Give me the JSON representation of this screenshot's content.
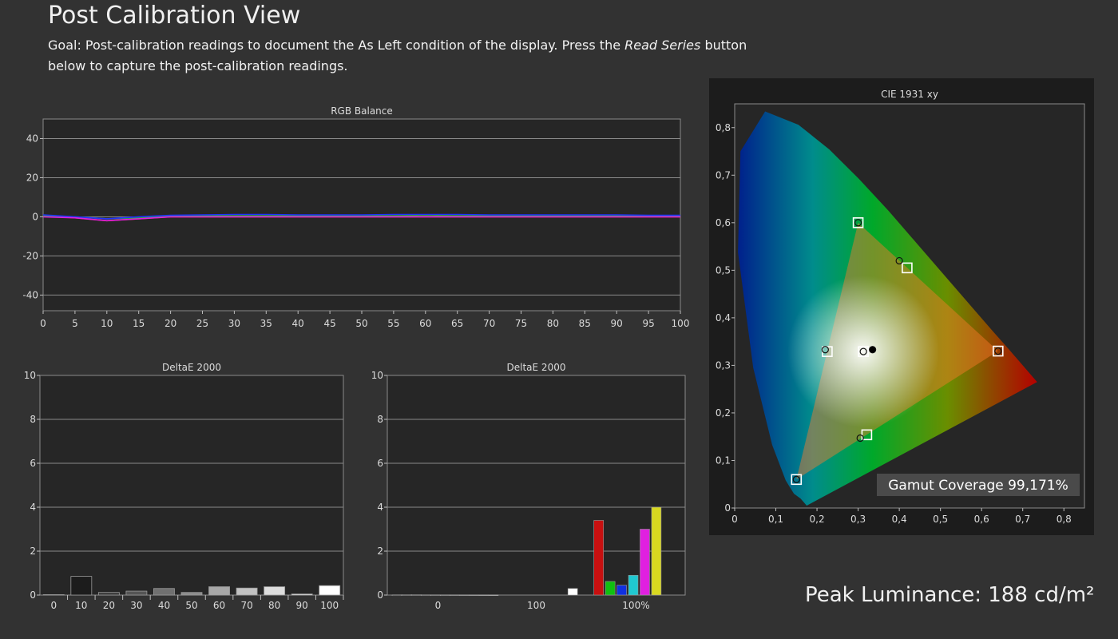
{
  "header": {
    "title": "Post Calibration View",
    "goal_prefix": "Goal: Post-calibration readings to document the As Left condition of the display. Press the ",
    "goal_emphasis": "Read Series",
    "goal_suffix": " button below to capture the post-calibration readings."
  },
  "peak_luminance": "Peak Luminance: 188 cd/m²",
  "chart_data": [
    {
      "type": "line",
      "title": "RGB Balance",
      "x": [
        0,
        5,
        10,
        15,
        20,
        25,
        30,
        35,
        40,
        45,
        50,
        55,
        60,
        65,
        70,
        75,
        80,
        85,
        90,
        95,
        100
      ],
      "xlim": [
        0,
        100
      ],
      "ylim": [
        -48,
        50
      ],
      "yticks": [
        40,
        20,
        0,
        -20,
        -40
      ],
      "ytick_labels": [
        "40",
        "20",
        "0",
        "-20",
        "-40"
      ],
      "xtick_labels": [
        "0",
        "5",
        "10",
        "15",
        "20",
        "25",
        "30",
        "35",
        "40",
        "45",
        "50",
        "55",
        "60",
        "65",
        "70",
        "75",
        "80",
        "85",
        "90",
        "95",
        "100"
      ],
      "grid": true,
      "series": [
        {
          "color": "#ff2020",
          "values": [
            0.5,
            -0.5,
            -2,
            -1,
            0,
            0,
            0,
            0,
            0,
            0,
            0,
            0,
            0,
            0,
            0,
            0,
            0,
            0,
            0,
            0,
            0
          ]
        },
        {
          "color": "#20c020",
          "values": [
            0.5,
            0,
            -1,
            -0.5,
            0.5,
            0.5,
            0.5,
            0.5,
            0.5,
            0.5,
            0.5,
            0.5,
            0.8,
            0.5,
            0.5,
            0.5,
            0.5,
            0.5,
            0.5,
            0.5,
            0.5
          ]
        },
        {
          "color": "#2030ff",
          "values": [
            1,
            0,
            -1,
            0,
            0.8,
            1,
            1.2,
            1.2,
            1,
            1,
            1,
            1.2,
            1.2,
            1.2,
            1,
            1,
            1,
            1,
            1,
            0.8,
            0.8
          ]
        },
        {
          "color": "#e020e0",
          "values": [
            0,
            -0.5,
            -2,
            -1,
            0,
            0,
            0,
            0,
            0,
            0,
            0,
            0,
            0,
            0,
            0,
            0,
            0,
            0,
            0,
            0,
            0
          ]
        }
      ]
    },
    {
      "type": "bar",
      "title": "DeltaE 2000",
      "categories": [
        "0",
        "10",
        "20",
        "30",
        "40",
        "50",
        "60",
        "70",
        "80",
        "90",
        "100"
      ],
      "values": [
        0.02,
        0.85,
        0.12,
        0.18,
        0.3,
        0.12,
        0.38,
        0.32,
        0.38,
        0.05,
        0.43
      ],
      "colors": [
        "#0e0e0e",
        "#1c1c1c",
        "#3a3a3a",
        "#555555",
        "#707070",
        "#8c8c8c",
        "#a7a7a7",
        "#c2c2c2",
        "#dddddd",
        "#eeeeee",
        "#ffffff"
      ],
      "ylim": [
        0,
        10
      ],
      "yticks": [
        "0",
        "2",
        "4",
        "6",
        "8",
        "10"
      ],
      "grid": true
    },
    {
      "type": "bar",
      "title": "DeltaE 2000",
      "group_labels": [
        "0",
        "100",
        "100%"
      ],
      "bars": [
        {
          "value": 0.01,
          "color": "#202020"
        },
        {
          "value": 0.02,
          "color": "#2b2b2b"
        },
        {
          "value": 0.02,
          "color": "#353535"
        },
        {
          "value": 0.01,
          "color": "#404040"
        },
        {
          "value": 0.01,
          "color": "#505050"
        },
        {
          "value": 0.01,
          "color": "#606060"
        },
        {
          "value": 0.01,
          "color": "#707070"
        },
        {
          "value": 0.01,
          "color": "#808080"
        },
        {
          "value": 0.01,
          "color": "#909090"
        },
        {
          "value": 0.01,
          "color": "#a0a0a0"
        },
        {
          "value": 0.01,
          "color": "#b0b0b0"
        },
        {
          "value": 0.3,
          "color": "#ffffff"
        },
        {
          "value": 3.4,
          "color": "#c81010"
        },
        {
          "value": 0.62,
          "color": "#10c010"
        },
        {
          "value": 0.45,
          "color": "#1030e0"
        },
        {
          "value": 0.9,
          "color": "#20c8d0"
        },
        {
          "value": 3.0,
          "color": "#e020e0"
        },
        {
          "value": 4.0,
          "color": "#d8d820"
        }
      ],
      "ylim": [
        0,
        10
      ],
      "yticks": [
        "0",
        "2",
        "4",
        "6",
        "8",
        "10"
      ],
      "grid": true
    },
    {
      "type": "scatter",
      "title": "CIE 1931 xy",
      "xlim": [
        0,
        0.85
      ],
      "ylim": [
        0,
        0.85
      ],
      "xticks": [
        "0",
        "0,1",
        "0,2",
        "0,3",
        "0,4",
        "0,5",
        "0,6",
        "0,7",
        "0,8"
      ],
      "yticks": [
        "0",
        "0,1",
        "0,2",
        "0,3",
        "0,4",
        "0,5",
        "0,6",
        "0,7",
        "0,8"
      ],
      "targets": [
        {
          "name": "red",
          "x": 0.64,
          "y": 0.33
        },
        {
          "name": "green",
          "x": 0.3,
          "y": 0.6
        },
        {
          "name": "blue",
          "x": 0.15,
          "y": 0.06
        },
        {
          "name": "cyan",
          "x": 0.225,
          "y": 0.329
        },
        {
          "name": "magenta",
          "x": 0.321,
          "y": 0.154
        },
        {
          "name": "yellow",
          "x": 0.419,
          "y": 0.505
        },
        {
          "name": "white",
          "x": 0.3127,
          "y": 0.329
        }
      ],
      "measured": [
        {
          "name": "red",
          "x": 0.64,
          "y": 0.33
        },
        {
          "name": "green",
          "x": 0.3,
          "y": 0.6
        },
        {
          "name": "blue",
          "x": 0.15,
          "y": 0.06
        },
        {
          "name": "cyan",
          "x": 0.22,
          "y": 0.333
        },
        {
          "name": "magenta",
          "x": 0.305,
          "y": 0.147
        },
        {
          "name": "yellow",
          "x": 0.4,
          "y": 0.52
        },
        {
          "name": "white",
          "x": 0.3127,
          "y": 0.329
        },
        {
          "name": "white-point",
          "x": 0.335,
          "y": 0.333
        }
      ],
      "gamut_coverage": "Gamut Coverage 99,171%"
    }
  ]
}
